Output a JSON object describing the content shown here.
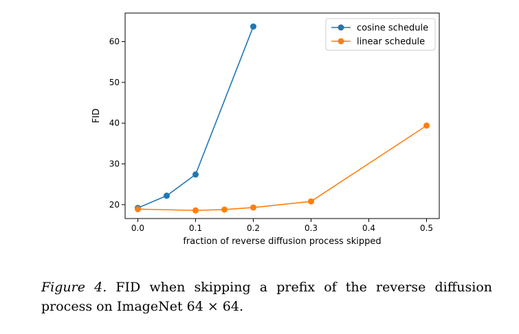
{
  "chart_data": {
    "type": "line",
    "xlabel": "fraction of reverse diffusion process skipped",
    "ylabel": "FID",
    "xlim": [
      -0.022,
      0.522
    ],
    "ylim": [
      16.6,
      67.0
    ],
    "xticks": [
      0.0,
      0.1,
      0.2,
      0.3,
      0.4,
      0.5
    ],
    "xtick_labels": [
      "0.0",
      "0.1",
      "0.2",
      "0.3",
      "0.4",
      "0.5"
    ],
    "yticks": [
      20,
      30,
      40,
      50,
      60
    ],
    "ytick_labels": [
      "20",
      "30",
      "40",
      "50",
      "60"
    ],
    "grid": false,
    "legend_position": "upper-right",
    "series": [
      {
        "name": "cosine schedule",
        "color": "#1f77b4",
        "x": [
          0.0,
          0.05,
          0.1,
          0.2
        ],
        "y": [
          19.2,
          22.2,
          27.4,
          63.7
        ]
      },
      {
        "name": "linear schedule",
        "color": "#ff7f0e",
        "x": [
          0.0,
          0.1,
          0.15,
          0.2,
          0.3,
          0.5
        ],
        "y": [
          18.9,
          18.6,
          18.8,
          19.3,
          20.8,
          39.4
        ]
      }
    ]
  },
  "caption": {
    "label": "Figure 4.",
    "text": "FID when skipping a prefix of the reverse diffusion process on ImageNet 64 × 64."
  }
}
